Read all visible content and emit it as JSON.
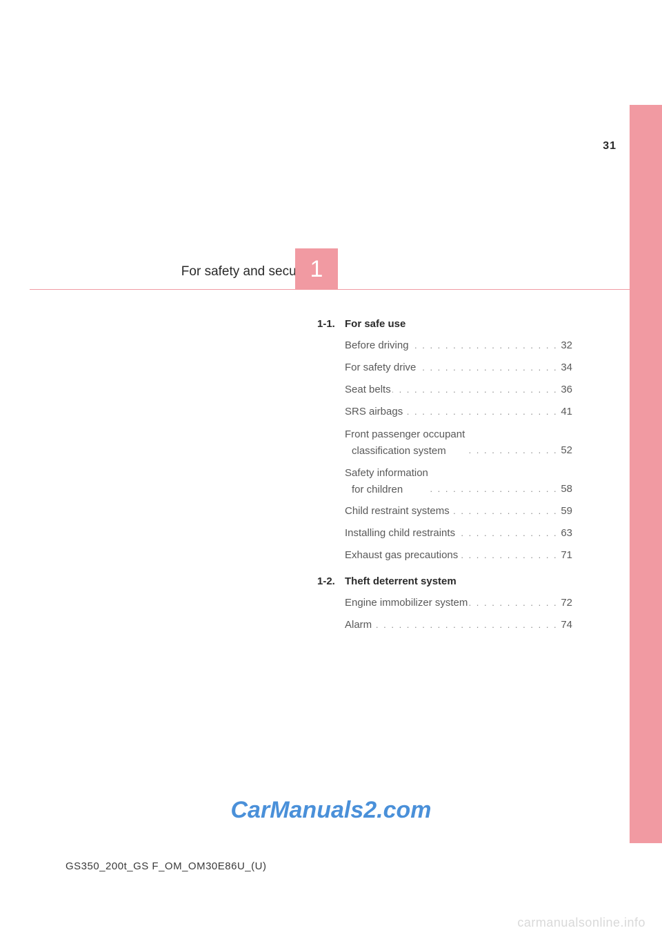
{
  "page_number": "31",
  "chapter": {
    "number": "1",
    "title": "For safety and security"
  },
  "sections": [
    {
      "num": "1-1.",
      "title": "For safe use",
      "entries": [
        {
          "label": "Before driving",
          "page": "32"
        },
        {
          "label": "For safety drive",
          "page": "34"
        },
        {
          "label": "Seat belts",
          "page": "36"
        },
        {
          "label": "SRS airbags",
          "page": "41"
        },
        {
          "label": "Front passenger occupant",
          "label2": "classification system",
          "page": "52"
        },
        {
          "label": "Safety information",
          "label2": "for children",
          "page": "58"
        },
        {
          "label": "Child restraint systems",
          "page": "59"
        },
        {
          "label": "Installing child restraints",
          "page": "63"
        },
        {
          "label": "Exhaust gas precautions",
          "page": "71"
        }
      ]
    },
    {
      "num": "1-2.",
      "title": "Theft deterrent system",
      "entries": [
        {
          "label": "Engine immobilizer system",
          "page": "72"
        },
        {
          "label": "Alarm",
          "page": "74"
        }
      ]
    }
  ],
  "watermark": "CarManuals2.com",
  "doc_code": "GS350_200t_GS F_OM_OM30E86U_(U)",
  "footer": "carmanualsonline.info",
  "colors": {
    "accent": "#f19aa2",
    "text": "#3a3a3a",
    "muted": "#595959",
    "watermark": "#4a90d9",
    "footer": "#d9d9d9"
  }
}
